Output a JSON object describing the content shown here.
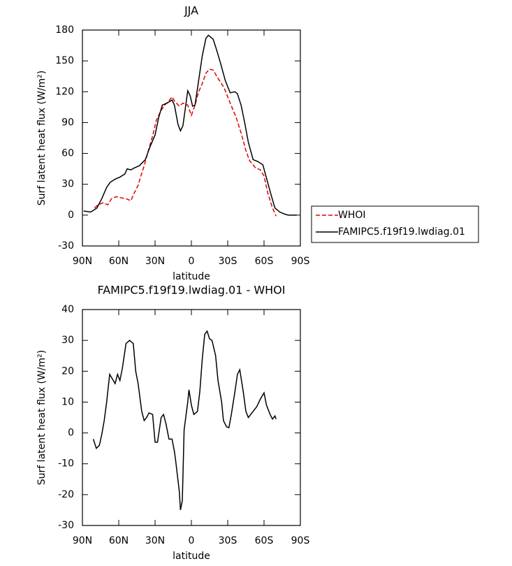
{
  "chart_data": [
    {
      "type": "line",
      "title": "JJA",
      "xlabel": "latitude",
      "ylabel": "Surf latent heat flux (W/m²)",
      "xlim": [
        90,
        -90
      ],
      "xticks": [
        {
          "value": 90,
          "label": "90N"
        },
        {
          "value": 60,
          "label": "60N"
        },
        {
          "value": 30,
          "label": "30N"
        },
        0,
        {
          "value": -30,
          "label": "30S"
        },
        {
          "value": -60,
          "label": "60S"
        },
        {
          "value": -90,
          "label": "90S"
        }
      ],
      "ylim": [
        -30,
        180
      ],
      "yticks": [
        -30,
        0,
        30,
        60,
        90,
        120,
        150,
        180
      ],
      "legend": "right",
      "series": [
        {
          "name": "WHOI",
          "color": "#e00000",
          "linestyle": "dashed",
          "x": [
            80,
            77,
            73,
            69,
            66,
            62,
            59,
            54,
            50,
            47,
            44,
            42,
            39,
            35,
            32,
            29,
            25,
            22,
            18,
            16,
            14,
            10,
            7,
            3,
            0,
            -3,
            -6,
            -9,
            -12,
            -15,
            -18,
            -22,
            -27,
            -32,
            -37,
            -41,
            -45,
            -48,
            -53,
            -57,
            -60,
            -63,
            -67,
            -70
          ],
          "values": [
            7,
            10,
            12,
            10,
            16,
            18,
            17,
            16,
            14,
            22,
            29,
            37,
            48,
            65,
            77,
            92,
            102,
            107,
            112,
            115,
            111,
            106,
            109,
            107,
            97,
            107,
            120,
            128,
            138,
            142,
            141,
            133,
            124,
            109,
            95,
            80,
            63,
            53,
            46,
            44,
            38,
            22,
            7,
            -1
          ]
        },
        {
          "name": "FAMIPC5.f19f19.lwdiag.01",
          "color": "#000000",
          "linestyle": "solid",
          "x": [
            89,
            83,
            78,
            74,
            70,
            67,
            63,
            59,
            55,
            53,
            50,
            47,
            43,
            38,
            34,
            30,
            27,
            24,
            20,
            16,
            14,
            11,
            9,
            7,
            3,
            1,
            -1,
            -3,
            -6,
            -9,
            -12,
            -14,
            -18,
            -21,
            -24,
            -28,
            -32,
            -36,
            -38,
            -41,
            -44,
            -47,
            -51,
            -55,
            -59,
            -62,
            -66,
            -69,
            -73,
            -77,
            -80,
            -87
          ],
          "values": [
            4,
            3,
            7,
            16,
            27,
            32,
            35,
            37,
            40,
            45,
            44,
            46,
            48,
            54,
            67,
            78,
            95,
            107,
            109,
            112,
            107,
            88,
            82,
            87,
            121,
            116,
            106,
            107,
            131,
            155,
            172,
            175,
            171,
            160,
            148,
            131,
            119,
            120,
            118,
            107,
            90,
            71,
            54,
            52,
            49,
            36,
            19,
            7,
            3,
            1,
            0,
            0
          ]
        }
      ]
    },
    {
      "type": "line",
      "title": "FAMIPC5.f19f19.lwdiag.01 - WHOI",
      "xlabel": "latitude",
      "ylabel": "Surf latent heat flux (W/m²)",
      "xlim": [
        90,
        -90
      ],
      "xticks": [
        {
          "value": 90,
          "label": "90N"
        },
        {
          "value": 60,
          "label": "60N"
        },
        {
          "value": 30,
          "label": "30N"
        },
        0,
        {
          "value": -30,
          "label": "30S"
        },
        {
          "value": -60,
          "label": "60S"
        },
        {
          "value": -90,
          "label": "90S"
        }
      ],
      "ylim": [
        -30,
        40
      ],
      "yticks": [
        -30,
        -20,
        -10,
        0,
        10,
        20,
        30,
        40
      ],
      "series": [
        {
          "color": "#000000",
          "linestyle": "solid",
          "x": [
            81,
            78.5,
            76,
            74,
            72,
            70,
            67.5,
            66,
            63,
            61,
            59,
            57,
            54,
            51,
            48,
            46,
            44,
            41,
            39,
            37,
            35,
            32,
            30,
            28,
            25,
            23,
            21,
            18.5,
            16,
            14,
            13,
            10,
            9,
            7.5,
            6,
            3,
            2,
            0,
            -2,
            -5,
            -7,
            -9,
            -11,
            -13,
            -15,
            -17,
            -20,
            -22,
            -25,
            -26.5,
            -29,
            -31,
            -33,
            -36,
            -38,
            -40,
            -43,
            -45,
            -47,
            -51,
            -54,
            -57,
            -60,
            -62,
            -65,
            -67,
            -69,
            -70
          ],
          "values": [
            -2,
            -5,
            -4,
            -0.5,
            4,
            10,
            19,
            18,
            16,
            19,
            17,
            21,
            29,
            30,
            29,
            20,
            16,
            7,
            4,
            5,
            6.5,
            6,
            -3,
            -3,
            5,
            6,
            3,
            -2,
            -2,
            -6,
            -9,
            -19,
            -25,
            -22,
            1,
            10,
            14,
            9,
            6,
            7,
            13.5,
            24,
            32,
            33,
            30.5,
            30,
            25,
            17,
            10,
            4,
            2,
            1.7,
            6,
            13.5,
            19,
            20.5,
            13,
            7,
            5,
            7,
            8.5,
            11,
            13,
            9,
            6,
            4.5,
            5.5,
            4.5
          ]
        }
      ]
    }
  ]
}
